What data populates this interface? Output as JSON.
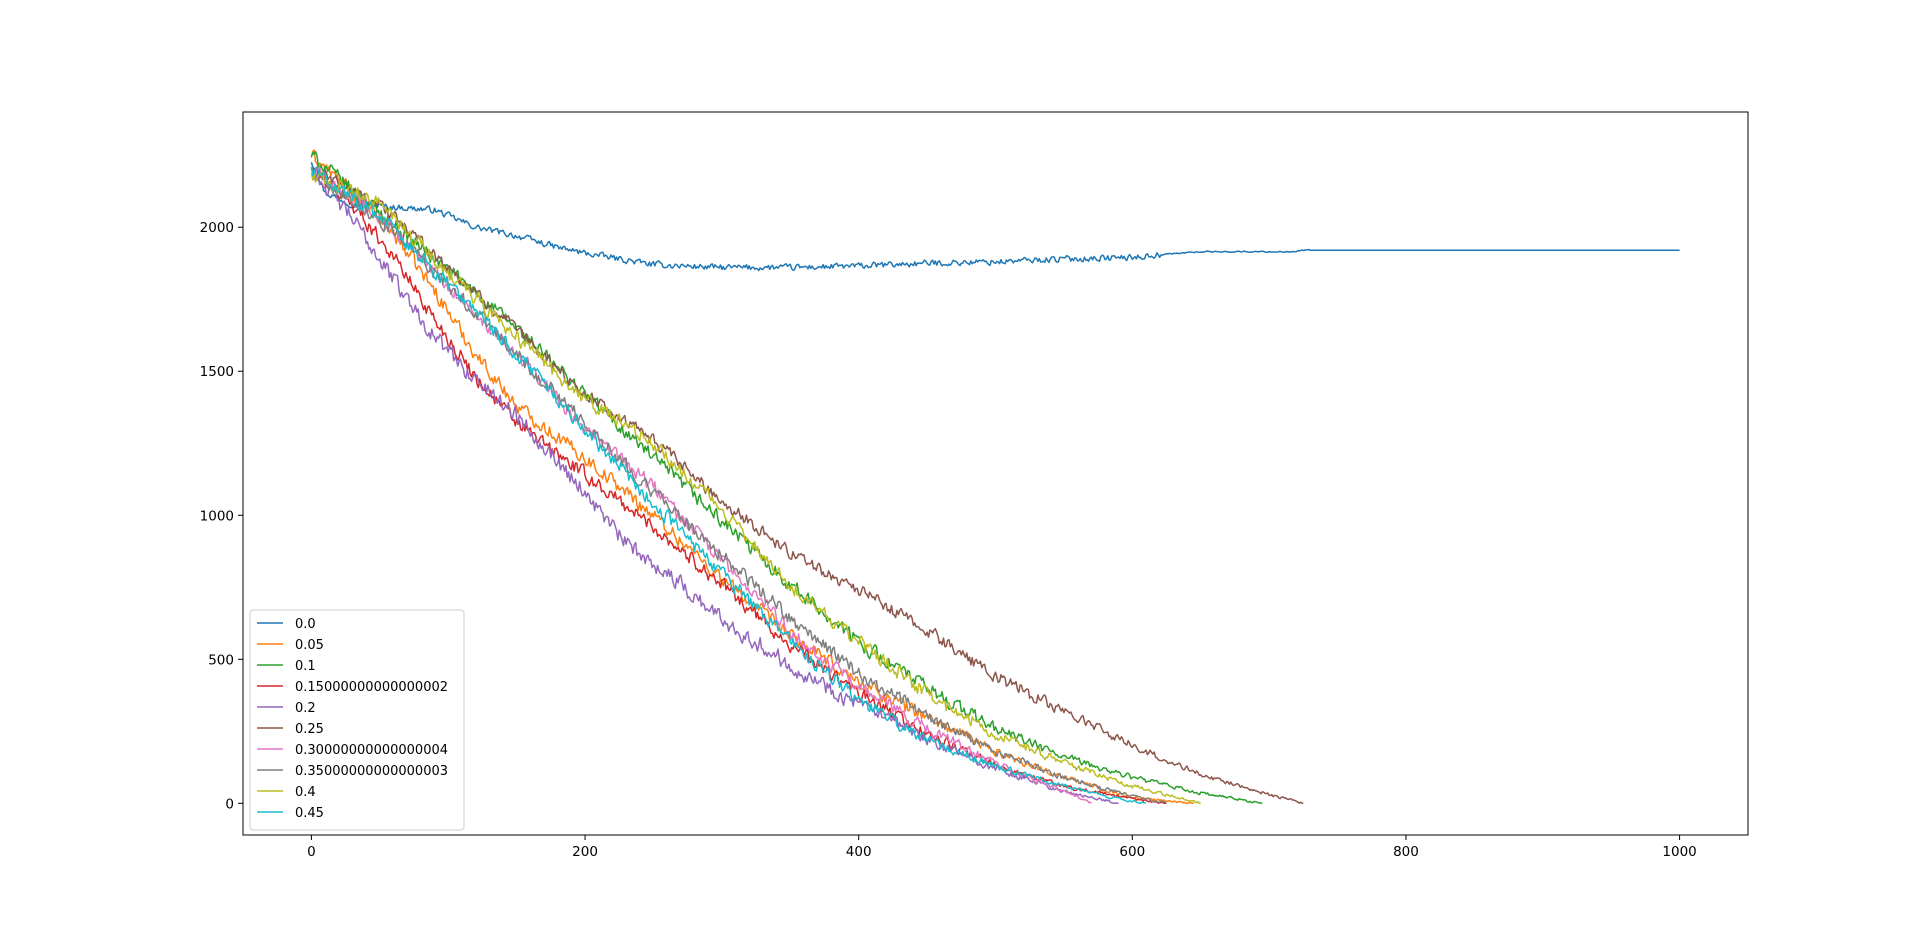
{
  "chart_data": {
    "type": "line",
    "title": "",
    "xlabel": "",
    "ylabel": "",
    "xlim": [
      -50,
      1050
    ],
    "ylim": [
      -110,
      2400
    ],
    "xticks": [
      0,
      200,
      400,
      600,
      800,
      1000
    ],
    "yticks": [
      0,
      500,
      1000,
      1500,
      2000
    ],
    "grid": false,
    "legend_position": "lower-left",
    "series": [
      {
        "name": "0.0",
        "color": "#1f77b4",
        "noise": 15,
        "points": [
          [
            0,
            2230
          ],
          [
            10,
            2120
          ],
          [
            30,
            2080
          ],
          [
            60,
            2070
          ],
          [
            90,
            2060
          ],
          [
            120,
            2000
          ],
          [
            150,
            1970
          ],
          [
            180,
            1930
          ],
          [
            200,
            1910
          ],
          [
            250,
            1870
          ],
          [
            300,
            1860
          ],
          [
            350,
            1860
          ],
          [
            400,
            1865
          ],
          [
            450,
            1875
          ],
          [
            500,
            1880
          ],
          [
            550,
            1890
          ],
          [
            600,
            1895
          ],
          [
            620,
            1905
          ],
          [
            650,
            1915
          ],
          [
            720,
            1915
          ],
          [
            725,
            1920
          ],
          [
            1000,
            1920
          ]
        ]
      },
      {
        "name": "0.05",
        "color": "#ff7f0e",
        "noise": 35,
        "points": [
          [
            0,
            2250
          ],
          [
            30,
            2120
          ],
          [
            60,
            1980
          ],
          [
            90,
            1780
          ],
          [
            120,
            1560
          ],
          [
            150,
            1380
          ],
          [
            200,
            1200
          ],
          [
            250,
            1000
          ],
          [
            300,
            780
          ],
          [
            350,
            580
          ],
          [
            400,
            420
          ],
          [
            450,
            300
          ],
          [
            500,
            180
          ],
          [
            550,
            90
          ],
          [
            600,
            20
          ],
          [
            645,
            0
          ]
        ]
      },
      {
        "name": "0.1",
        "color": "#2ca02c",
        "noise": 35,
        "points": [
          [
            0,
            2250
          ],
          [
            50,
            2050
          ],
          [
            100,
            1850
          ],
          [
            150,
            1650
          ],
          [
            200,
            1420
          ],
          [
            250,
            1200
          ],
          [
            300,
            980
          ],
          [
            350,
            760
          ],
          [
            400,
            560
          ],
          [
            450,
            400
          ],
          [
            500,
            260
          ],
          [
            550,
            160
          ],
          [
            600,
            90
          ],
          [
            650,
            35
          ],
          [
            695,
            0
          ]
        ]
      },
      {
        "name": "0.15000000000000002",
        "color": "#d62728",
        "noise": 35,
        "points": [
          [
            0,
            2200
          ],
          [
            30,
            2080
          ],
          [
            60,
            1900
          ],
          [
            90,
            1680
          ],
          [
            120,
            1480
          ],
          [
            150,
            1320
          ],
          [
            200,
            1140
          ],
          [
            250,
            960
          ],
          [
            300,
            760
          ],
          [
            350,
            550
          ],
          [
            400,
            380
          ],
          [
            450,
            240
          ],
          [
            500,
            130
          ],
          [
            550,
            60
          ],
          [
            600,
            15
          ],
          [
            625,
            0
          ]
        ]
      },
      {
        "name": "0.2",
        "color": "#9467bd",
        "noise": 40,
        "points": [
          [
            0,
            2200
          ],
          [
            30,
            2030
          ],
          [
            60,
            1820
          ],
          [
            90,
            1620
          ],
          [
            120,
            1470
          ],
          [
            150,
            1350
          ],
          [
            200,
            1080
          ],
          [
            230,
            900
          ],
          [
            260,
            800
          ],
          [
            300,
            640
          ],
          [
            350,
            480
          ],
          [
            400,
            340
          ],
          [
            450,
            220
          ],
          [
            500,
            120
          ],
          [
            550,
            40
          ],
          [
            590,
            0
          ]
        ]
      },
      {
        "name": "0.25",
        "color": "#8c564b",
        "noise": 30,
        "points": [
          [
            0,
            2200
          ],
          [
            50,
            2080
          ],
          [
            100,
            1860
          ],
          [
            150,
            1640
          ],
          [
            200,
            1420
          ],
          [
            250,
            1260
          ],
          [
            300,
            1050
          ],
          [
            350,
            870
          ],
          [
            400,
            740
          ],
          [
            450,
            600
          ],
          [
            500,
            440
          ],
          [
            550,
            320
          ],
          [
            600,
            200
          ],
          [
            650,
            100
          ],
          [
            700,
            30
          ],
          [
            725,
            0
          ]
        ]
      },
      {
        "name": "0.30000000000000004",
        "color": "#e377c2",
        "noise": 35,
        "points": [
          [
            0,
            2200
          ],
          [
            50,
            2030
          ],
          [
            100,
            1800
          ],
          [
            150,
            1560
          ],
          [
            200,
            1300
          ],
          [
            250,
            1100
          ],
          [
            300,
            840
          ],
          [
            350,
            600
          ],
          [
            400,
            400
          ],
          [
            450,
            260
          ],
          [
            500,
            140
          ],
          [
            540,
            60
          ],
          [
            570,
            0
          ]
        ]
      },
      {
        "name": "0.35000000000000003",
        "color": "#7f7f7f",
        "noise": 35,
        "points": [
          [
            0,
            2200
          ],
          [
            50,
            2030
          ],
          [
            100,
            1800
          ],
          [
            150,
            1560
          ],
          [
            200,
            1320
          ],
          [
            250,
            1080
          ],
          [
            300,
            860
          ],
          [
            350,
            640
          ],
          [
            400,
            450
          ],
          [
            450,
            300
          ],
          [
            500,
            180
          ],
          [
            550,
            90
          ],
          [
            600,
            25
          ],
          [
            625,
            0
          ]
        ]
      },
      {
        "name": "0.4",
        "color": "#bcbd22",
        "noise": 35,
        "points": [
          [
            0,
            2180
          ],
          [
            50,
            2080
          ],
          [
            100,
            1840
          ],
          [
            150,
            1620
          ],
          [
            200,
            1400
          ],
          [
            250,
            1250
          ],
          [
            300,
            1020
          ],
          [
            350,
            760
          ],
          [
            400,
            560
          ],
          [
            450,
            380
          ],
          [
            500,
            240
          ],
          [
            550,
            140
          ],
          [
            600,
            60
          ],
          [
            650,
            0
          ]
        ]
      },
      {
        "name": "0.45",
        "color": "#17becf",
        "noise": 35,
        "points": [
          [
            0,
            2200
          ],
          [
            50,
            2040
          ],
          [
            100,
            1800
          ],
          [
            150,
            1560
          ],
          [
            200,
            1300
          ],
          [
            250,
            1040
          ],
          [
            300,
            800
          ],
          [
            350,
            560
          ],
          [
            400,
            360
          ],
          [
            450,
            220
          ],
          [
            500,
            130
          ],
          [
            550,
            60
          ],
          [
            590,
            15
          ],
          [
            610,
            0
          ]
        ]
      }
    ]
  }
}
